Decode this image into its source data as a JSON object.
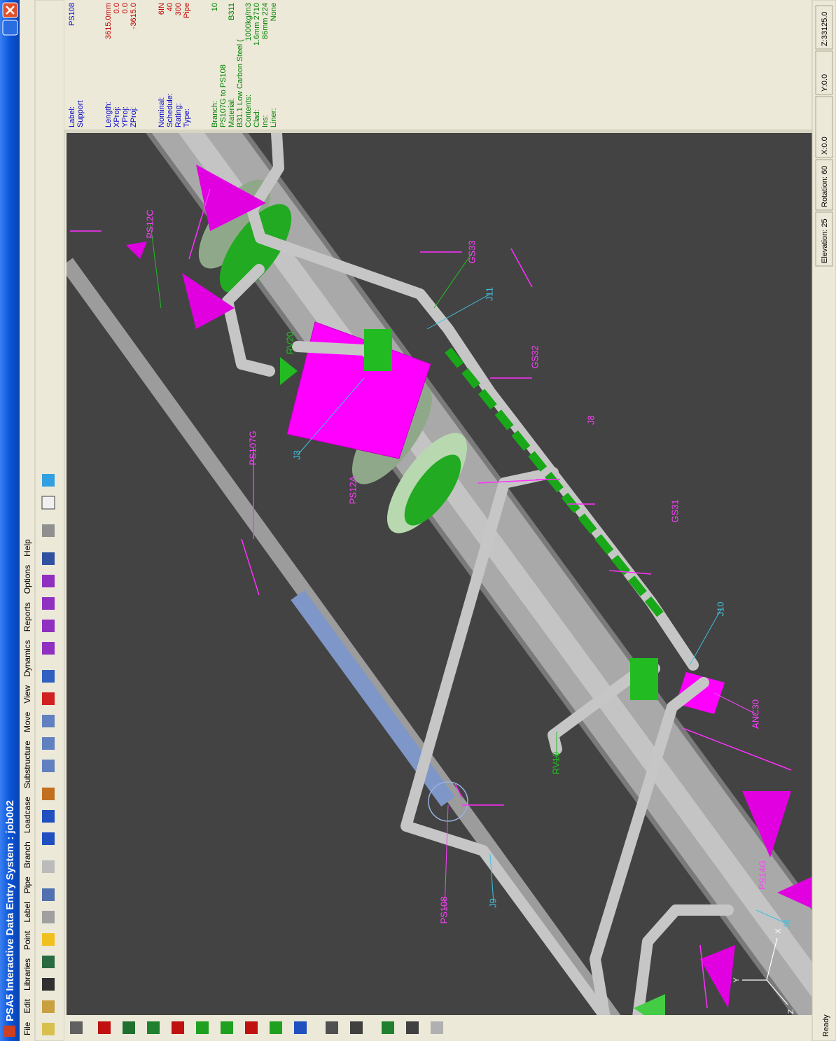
{
  "window": {
    "title": "PSA5 Interactive Data Entry System : job002",
    "menu": [
      "File",
      "Edit",
      "Libraries",
      "Point",
      "Label",
      "Pipe",
      "Branch",
      "Loadcase",
      "Substructure",
      "Move",
      "View",
      "Dynamics",
      "Reports",
      "Options",
      "Help"
    ]
  },
  "info_panel": {
    "groups": [
      [
        {
          "label": "Label:",
          "value": "PS108"
        },
        {
          "label": "Support"
        }
      ],
      [
        {
          "label": "Length:",
          "value": "3615.0mm"
        },
        {
          "label": "XProj:",
          "value": "0.0"
        },
        {
          "label": "YProj:",
          "value": "0.0"
        },
        {
          "label": "ZProj:",
          "value": "-3615.0"
        }
      ],
      [
        {
          "label": "Nominal:",
          "value": "6IN"
        },
        {
          "label": "Schedule:",
          "value": "40"
        },
        {
          "label": "Rating:",
          "value": "300"
        },
        {
          "label": "Type:",
          "value": "Pipe"
        }
      ],
      [
        {
          "label": "Branch:",
          "value": "10"
        },
        {
          "label": "PS107G to PS108"
        },
        {
          "label": "Material:",
          "value": "B311"
        },
        {
          "label": "B31.1  Low Carbon Steel ("
        },
        {
          "label": "Contents:",
          "value": "1000kg/m3"
        },
        {
          "label": "Clad:",
          "value": "1.6mm 2710"
        },
        {
          "label": "Ins:",
          "value": "86mm 224"
        },
        {
          "label": "Liner:",
          "value": "None"
        }
      ]
    ],
    "axes": [
      "Y",
      "X",
      "Z"
    ]
  },
  "viewport": {
    "labels": [
      {
        "text": "PS12C",
        "color": "#ff40ff"
      },
      {
        "text": "GS33",
        "color": "#ff40ff"
      },
      {
        "text": "J11",
        "color": "#40c0e0"
      },
      {
        "text": "RV20",
        "color": "#20c020"
      },
      {
        "text": "GS32",
        "color": "#ff40ff"
      },
      {
        "text": "PS107G",
        "color": "#ff40ff"
      },
      {
        "text": "J3",
        "color": "#40c0e0"
      },
      {
        "text": "PS12A",
        "color": "#ff40ff"
      },
      {
        "text": "J8",
        "color": "#ff40ff"
      },
      {
        "text": "GS31",
        "color": "#ff40ff"
      },
      {
        "text": "J10",
        "color": "#40c0e0"
      },
      {
        "text": "ANC30",
        "color": "#ff40ff"
      },
      {
        "text": "RV10",
        "color": "#20c020"
      },
      {
        "text": "PS14G",
        "color": "#ff40ff"
      },
      {
        "text": "PS108",
        "color": "#ff40ff"
      },
      {
        "text": "J9",
        "color": "#40c0e0"
      },
      {
        "text": "J4",
        "color": "#40c0e0"
      }
    ],
    "axes": [
      "X",
      "Y",
      "Z"
    ]
  },
  "status_bar": {
    "ready": "Ready",
    "fields": [
      "Elevation: 25",
      "Rotation: 60",
      "X:0.0",
      "Y:0.0",
      "Z:33125.0"
    ]
  }
}
